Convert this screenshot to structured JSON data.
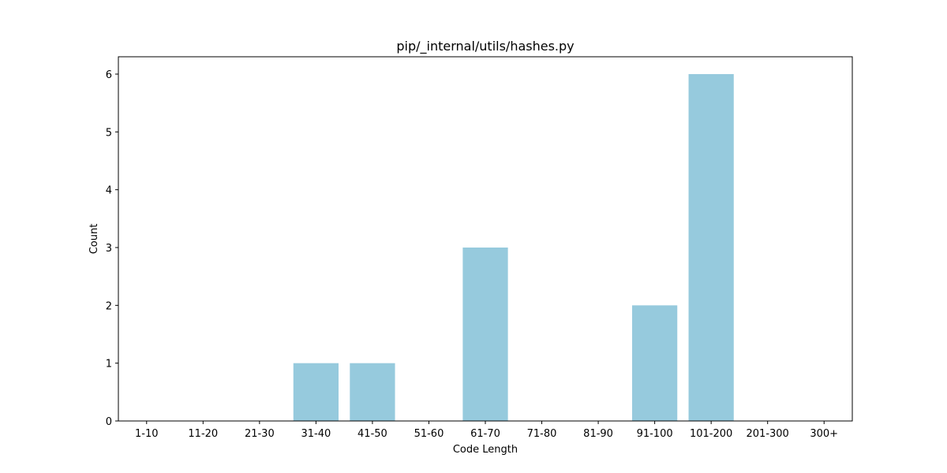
{
  "chart_data": {
    "type": "bar",
    "title": "pip/_internal/utils/hashes.py",
    "xlabel": "Code Length",
    "ylabel": "Count",
    "categories": [
      "1-10",
      "11-20",
      "21-30",
      "31-40",
      "41-50",
      "51-60",
      "61-70",
      "71-80",
      "81-90",
      "91-100",
      "101-200",
      "201-300",
      "300+"
    ],
    "values": [
      0,
      0,
      0,
      1,
      1,
      0,
      3,
      0,
      0,
      2,
      6,
      0,
      0
    ],
    "ylim": [
      0,
      6.3
    ],
    "yticks": [
      0,
      1,
      2,
      3,
      4,
      5,
      6
    ],
    "bar_color": "#96cadd",
    "grid": false,
    "legend": "none"
  }
}
